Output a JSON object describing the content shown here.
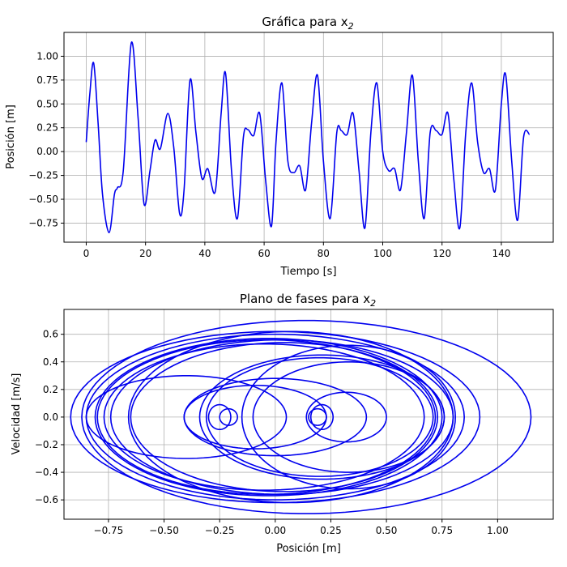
{
  "figure": {
    "background": "#ffffff"
  },
  "chart_data": [
    {
      "id": "time",
      "type": "line",
      "title": "Gráfica para x",
      "title_sub": "2",
      "xlabel": "Tiempo [s]",
      "ylabel": "Posición [m]",
      "xlim": [
        -7.5,
        157.5
      ],
      "ylim": [
        -0.95,
        1.25
      ],
      "xticks": [
        0,
        20,
        40,
        60,
        80,
        100,
        120,
        140
      ],
      "xtick_labels": [
        "0",
        "20",
        "40",
        "60",
        "80",
        "100",
        "120",
        "140"
      ],
      "yticks": [
        -0.75,
        -0.5,
        -0.25,
        0.0,
        0.25,
        0.5,
        0.75,
        1.0
      ],
      "ytick_labels": [
        "−0.75",
        "−0.50",
        "−0.25",
        "0.00",
        "0.25",
        "0.50",
        "0.75",
        "1.00"
      ],
      "grid": true,
      "series": [
        {
          "color": "#0000ee",
          "x": [
            0,
            1.2,
            2.5,
            4,
            5.5,
            7.7,
            9.5,
            10.5,
            12.5,
            15.2,
            17.5,
            19.5,
            21.5,
            23.2,
            25,
            27.5,
            29.5,
            31.5,
            33,
            35,
            37,
            39,
            41,
            43.5,
            45.5,
            47,
            49,
            51,
            53,
            54.5,
            56.5,
            58.5,
            60.5,
            62.5,
            64,
            66,
            68,
            70,
            72,
            74,
            76,
            78,
            80,
            82.3,
            84.5,
            86,
            88,
            90,
            92,
            94,
            96,
            98,
            100,
            102,
            104,
            106,
            108,
            110,
            112,
            114,
            116,
            118,
            120,
            122,
            124,
            126,
            128,
            130,
            132,
            134,
            136,
            138,
            140,
            141.5,
            143.5,
            145.5,
            147.5,
            149.5
          ],
          "y": [
            0.1,
            0.6,
            0.93,
            0.3,
            -0.45,
            -0.85,
            -0.45,
            -0.38,
            -0.2,
            1.14,
            0.35,
            -0.55,
            -0.2,
            0.12,
            0.03,
            0.4,
            0.05,
            -0.65,
            -0.4,
            0.75,
            0.2,
            -0.28,
            -0.18,
            -0.42,
            0.4,
            0.82,
            -0.2,
            -0.7,
            0.15,
            0.23,
            0.17,
            0.4,
            -0.3,
            -0.78,
            0.1,
            0.72,
            -0.1,
            -0.22,
            -0.15,
            -0.4,
            0.3,
            0.8,
            -0.1,
            -0.7,
            0.2,
            0.22,
            0.18,
            0.4,
            -0.2,
            -0.8,
            0.2,
            0.72,
            0.0,
            -0.2,
            -0.18,
            -0.4,
            0.2,
            0.8,
            -0.1,
            -0.7,
            0.2,
            0.22,
            0.18,
            0.4,
            -0.3,
            -0.8,
            0.2,
            0.72,
            0.1,
            -0.22,
            -0.18,
            -0.4,
            0.5,
            0.8,
            -0.1,
            -0.72,
            0.15,
            0.18
          ]
        }
      ]
    },
    {
      "id": "phase",
      "type": "line",
      "title": "Plano de fases para x",
      "title_sub": "2",
      "xlabel": "Posición [m]",
      "ylabel": "Velocidad [m/s]",
      "xlim": [
        -0.95,
        1.25
      ],
      "ylim": [
        -0.74,
        0.78
      ],
      "xticks": [
        -0.75,
        -0.5,
        -0.25,
        0.0,
        0.25,
        0.5,
        0.75,
        1.0
      ],
      "xtick_labels": [
        "−0.75",
        "−0.50",
        "−0.25",
        "0.00",
        "0.25",
        "0.50",
        "0.75",
        "1.00"
      ],
      "yticks": [
        -0.6,
        -0.4,
        -0.2,
        0.0,
        0.2,
        0.4,
        0.6
      ],
      "ytick_labels": [
        "−0.6",
        "−0.4",
        "−0.2",
        "0.0",
        "0.2",
        "0.4",
        "0.6"
      ],
      "grid": true,
      "series": [
        {
          "color": "#0000ee",
          "loops": [
            {
              "cx": 0.14,
              "cy": 0.0,
              "rx": 1.01,
              "ry": 0.7
            },
            {
              "cx": 0.0,
              "cy": 0.0,
              "rx": 0.92,
              "ry": 0.62
            },
            {
              "cx": 0.0,
              "cy": 0.0,
              "rx": 0.85,
              "ry": 0.6
            },
            {
              "cx": -0.03,
              "cy": 0.0,
              "rx": 0.78,
              "ry": 0.57
            },
            {
              "cx": -0.04,
              "cy": 0.0,
              "rx": 0.76,
              "ry": 0.56
            },
            {
              "cx": -0.05,
              "cy": 0.0,
              "rx": 0.72,
              "ry": 0.53
            },
            {
              "cx": 0.04,
              "cy": 0.0,
              "rx": 0.69,
              "ry": 0.54
            },
            {
              "cx": 0.03,
              "cy": 0.0,
              "rx": 0.77,
              "ry": 0.56
            },
            {
              "cx": -0.4,
              "cy": 0.0,
              "rx": 0.45,
              "ry": 0.3
            },
            {
              "cx": 0.07,
              "cy": 0.0,
              "rx": 0.73,
              "ry": 0.62
            },
            {
              "cx": 0.2,
              "cy": 0.0,
              "rx": 0.51,
              "ry": 0.43
            },
            {
              "cx": 0.33,
              "cy": 0.0,
              "rx": 0.43,
              "ry": 0.4
            },
            {
              "cx": 0.21,
              "cy": 0.0,
              "rx": 0.55,
              "ry": 0.45
            },
            {
              "cx": -0.09,
              "cy": 0.0,
              "rx": 0.32,
              "ry": 0.23
            },
            {
              "cx": 0.0,
              "cy": 0.0,
              "rx": 0.41,
              "ry": 0.28
            },
            {
              "cx": 0.33,
              "cy": 0.0,
              "rx": 0.48,
              "ry": 0.52
            },
            {
              "cx": -0.21,
              "cy": 0.0,
              "rx": 0.04,
              "ry": 0.06
            },
            {
              "cx": -0.25,
              "cy": 0.0,
              "rx": 0.05,
              "ry": 0.09
            },
            {
              "cx": 0.19,
              "cy": 0.0,
              "rx": 0.04,
              "ry": 0.06
            },
            {
              "cx": 0.21,
              "cy": 0.0,
              "rx": 0.05,
              "ry": 0.09
            },
            {
              "cx": 0.32,
              "cy": 0.0,
              "rx": 0.18,
              "ry": 0.18
            }
          ]
        }
      ]
    }
  ]
}
